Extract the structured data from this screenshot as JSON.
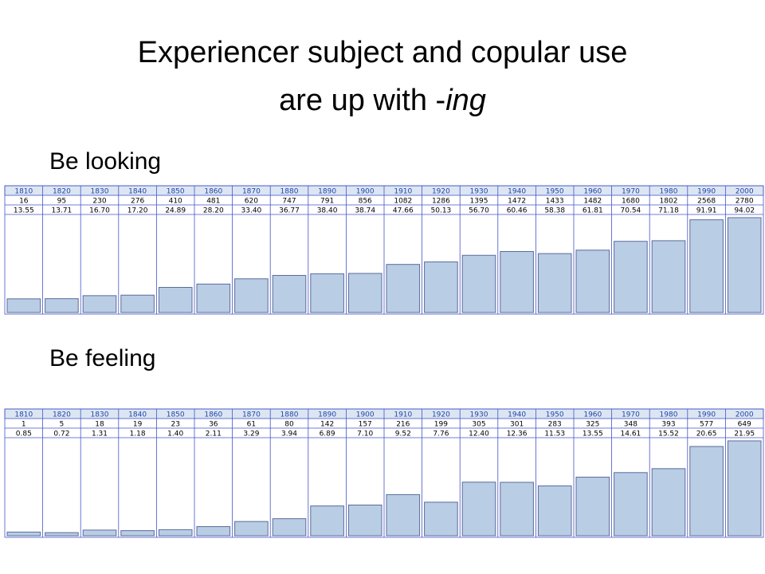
{
  "title": {
    "line1": "Experiencer subject and copular use",
    "line2": "are up with -",
    "em": "ing"
  },
  "chart_data": [
    {
      "type": "bar",
      "title": "Be looking",
      "color": "#b9cde5",
      "categories": [
        "1810",
        "1820",
        "1830",
        "1840",
        "1850",
        "1860",
        "1870",
        "1880",
        "1890",
        "1900",
        "1910",
        "1920",
        "1930",
        "1940",
        "1950",
        "1960",
        "1970",
        "1980",
        "1990",
        "2000"
      ],
      "counts": [
        16,
        95,
        230,
        276,
        410,
        481,
        620,
        747,
        791,
        856,
        1082,
        1286,
        1395,
        1472,
        1433,
        1482,
        1680,
        1802,
        2568,
        2780
      ],
      "values": [
        13.55,
        13.71,
        16.7,
        17.2,
        24.89,
        28.2,
        33.4,
        36.77,
        38.4,
        38.74,
        47.66,
        50.13,
        56.7,
        60.46,
        58.38,
        61.81,
        70.54,
        71.18,
        91.91,
        94.02
      ],
      "value_labels": [
        "13.55",
        "13.71",
        "16.70",
        "17.20",
        "24.89",
        "28.20",
        "33.40",
        "36.77",
        "38.40",
        "38.74",
        "47.66",
        "50.13",
        "56.70",
        "60.46",
        "58.38",
        "61.81",
        "70.54",
        "71.18",
        "91.91",
        "94.02"
      ]
    },
    {
      "type": "bar",
      "title": "Be feeling",
      "color": "#b9cde5",
      "categories": [
        "1810",
        "1820",
        "1830",
        "1840",
        "1850",
        "1860",
        "1870",
        "1880",
        "1890",
        "1900",
        "1910",
        "1920",
        "1930",
        "1940",
        "1950",
        "1960",
        "1970",
        "1980",
        "1990",
        "2000"
      ],
      "counts": [
        1,
        5,
        18,
        19,
        23,
        36,
        61,
        80,
        142,
        157,
        216,
        199,
        305,
        301,
        283,
        325,
        348,
        393,
        577,
        649
      ],
      "values": [
        0.85,
        0.72,
        1.31,
        1.18,
        1.4,
        2.11,
        3.29,
        3.94,
        6.89,
        7.1,
        9.52,
        7.76,
        12.4,
        12.36,
        11.53,
        13.55,
        14.61,
        15.52,
        20.65,
        21.95
      ],
      "value_labels": [
        "0.85",
        "0.72",
        "1.31",
        "1.18",
        "1.40",
        "2.11",
        "3.29",
        "3.94",
        "6.89",
        "7.10",
        "9.52",
        "7.76",
        "12.40",
        "12.36",
        "11.53",
        "13.55",
        "14.61",
        "15.52",
        "20.65",
        "21.95"
      ]
    }
  ]
}
